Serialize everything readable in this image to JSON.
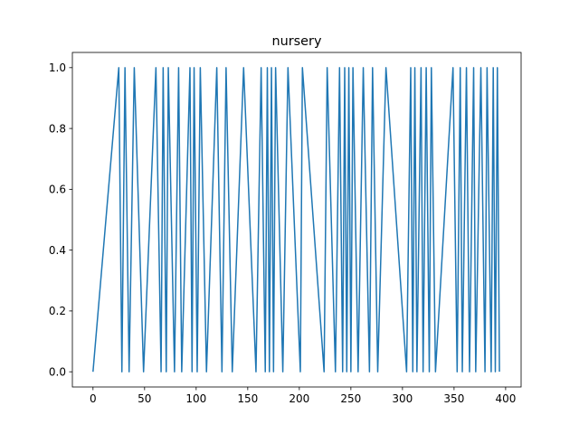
{
  "chart_data": {
    "type": "line",
    "title": "nursery",
    "xlabel": "",
    "ylabel": "",
    "xlim": [
      -20,
      415
    ],
    "ylim": [
      -0.05,
      1.05
    ],
    "xticks": [
      0,
      50,
      100,
      150,
      200,
      250,
      300,
      350,
      400
    ],
    "yticks": [
      0.0,
      0.2,
      0.4,
      0.6,
      0.8,
      1.0
    ],
    "xtick_labels": [
      "0",
      "50",
      "100",
      "150",
      "200",
      "250",
      "300",
      "350",
      "400"
    ],
    "ytick_labels": [
      "0.0",
      "0.2",
      "0.4",
      "0.6",
      "0.8",
      "1.0"
    ],
    "grid": false,
    "legend": "none",
    "line_color": "#1f77b4",
    "series": [
      {
        "x": [
          0,
          25,
          28,
          31,
          35,
          40,
          49,
          61,
          66,
          68,
          71,
          73,
          79,
          83,
          86,
          94,
          96,
          98,
          101,
          104,
          110,
          120,
          125,
          129,
          135,
          146,
          158,
          163,
          167,
          169,
          171,
          173,
          175,
          177,
          184,
          189,
          201,
          203,
          224,
          227,
          235,
          239,
          242,
          244,
          246,
          248,
          250,
          252,
          257,
          262,
          268,
          271,
          276,
          284,
          304,
          308,
          310,
          312,
          314,
          318,
          320,
          323,
          326,
          328,
          332,
          349,
          353,
          356,
          358,
          362,
          365,
          369,
          371,
          376,
          380,
          382,
          386,
          388,
          390,
          392,
          394
        ],
        "y": [
          0,
          1,
          0,
          1,
          0,
          1,
          0,
          1,
          0,
          1,
          0,
          1,
          0,
          1,
          0,
          1,
          0,
          1,
          0,
          1,
          0,
          1,
          0,
          1,
          0,
          1,
          0,
          1,
          0,
          1,
          0,
          1,
          0,
          1,
          0,
          1,
          0,
          1,
          0,
          1,
          0,
          1,
          0,
          1,
          0,
          1,
          0,
          1,
          0,
          1,
          0,
          1,
          0,
          1,
          0,
          1,
          0,
          1,
          0,
          1,
          0,
          1,
          0,
          1,
          0,
          1,
          0,
          1,
          0,
          1,
          0,
          1,
          0,
          1,
          0,
          1,
          0,
          1,
          0,
          1,
          0
        ]
      }
    ]
  }
}
